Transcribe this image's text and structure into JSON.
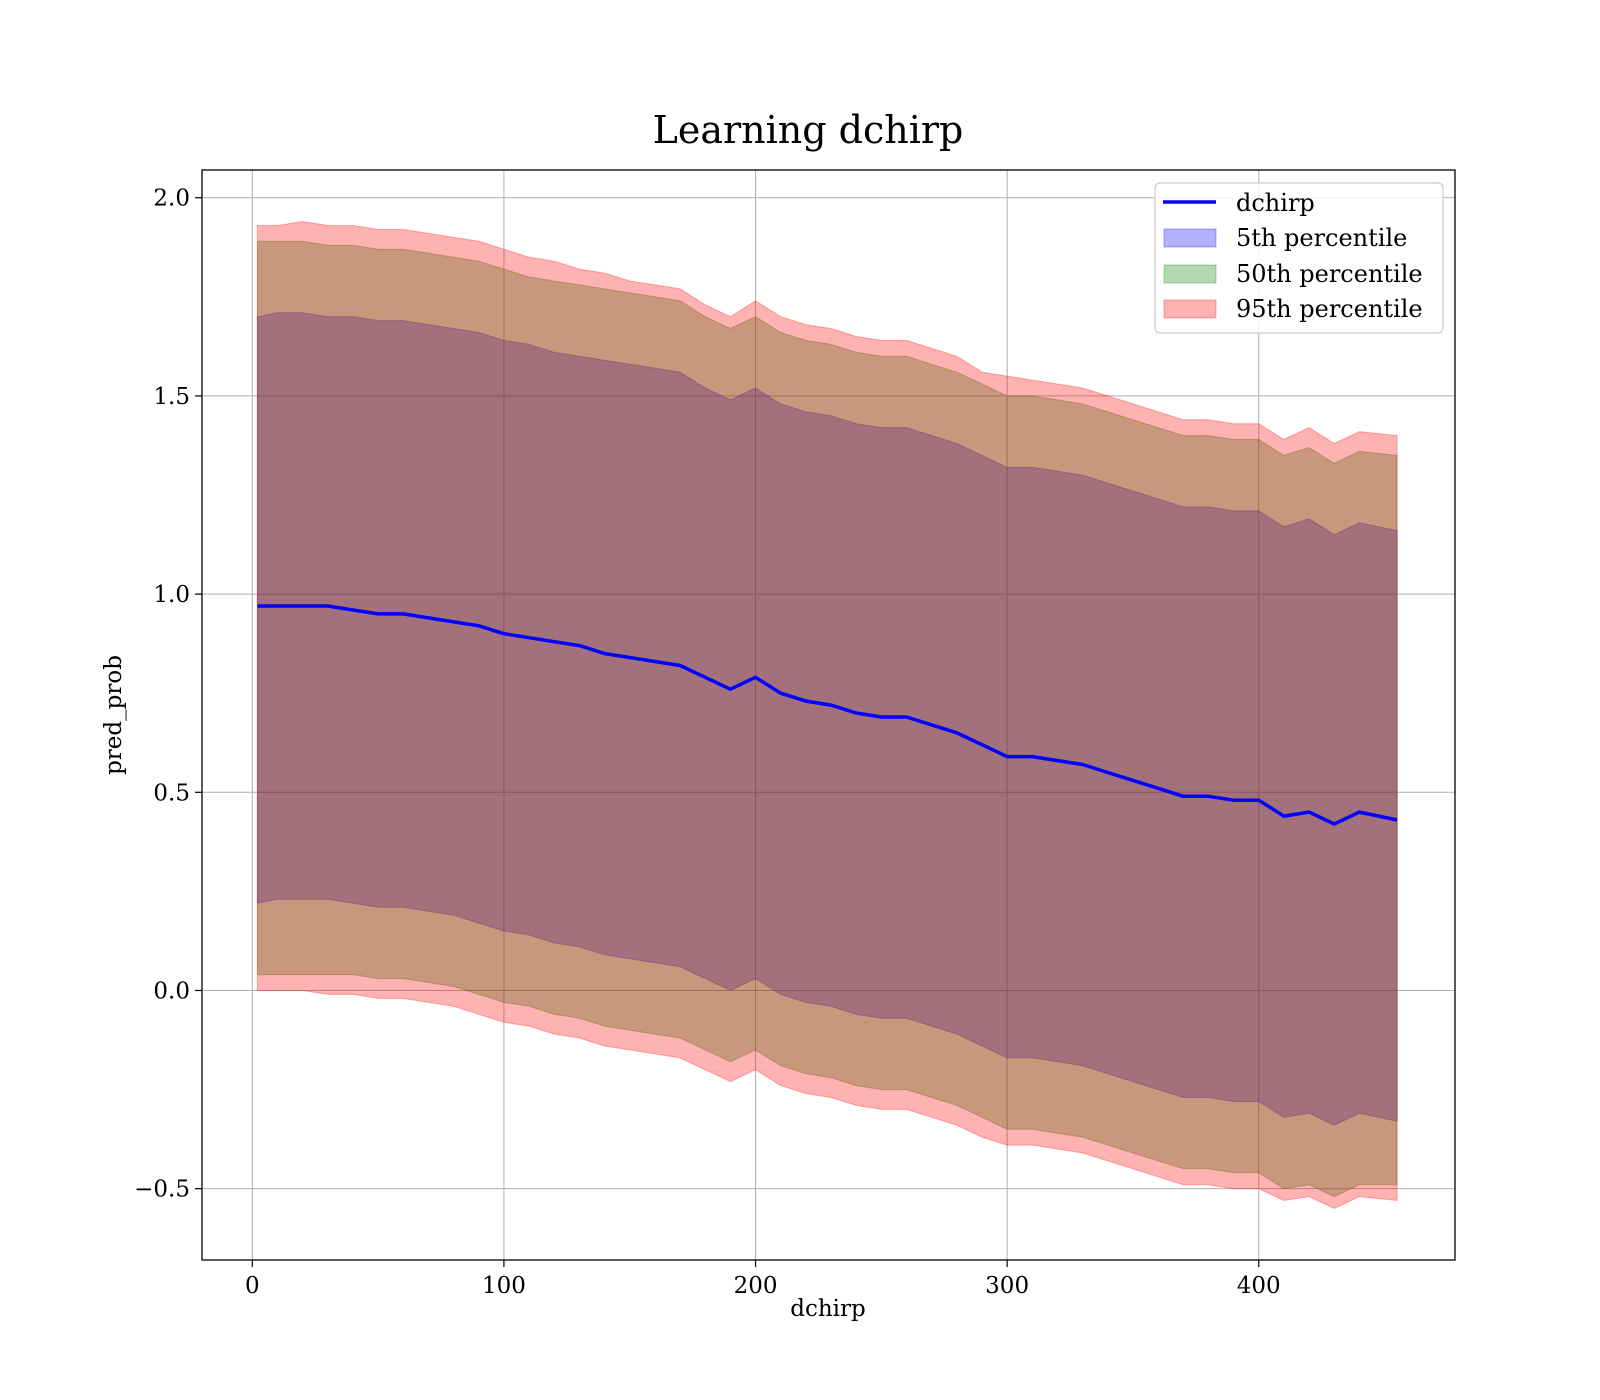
{
  "chart_data": {
    "type": "line",
    "title": "Learning dchirp",
    "xlabel": "dchirp",
    "ylabel": "pred_prob",
    "xlim": [
      -20,
      478
    ],
    "ylim": [
      -0.68,
      2.07
    ],
    "xticks": [
      0,
      100,
      200,
      300,
      400
    ],
    "xtick_labels": [
      "0",
      "100",
      "200",
      "300",
      "400"
    ],
    "yticks": [
      -0.5,
      0.0,
      0.5,
      1.0,
      1.5,
      2.0
    ],
    "ytick_labels": [
      "−0.5",
      "0.0",
      "0.5",
      "1.0",
      "1.5",
      "2.0"
    ],
    "grid": true,
    "legend_position": "upper right",
    "x": [
      2,
      10,
      20,
      30,
      40,
      50,
      60,
      70,
      80,
      90,
      100,
      110,
      120,
      130,
      140,
      150,
      160,
      170,
      180,
      190,
      200,
      210,
      220,
      230,
      240,
      250,
      260,
      270,
      280,
      290,
      300,
      310,
      320,
      330,
      340,
      350,
      360,
      370,
      380,
      390,
      400,
      410,
      420,
      430,
      440,
      455
    ],
    "line": {
      "name": "dchirp",
      "color": "#0000ff",
      "values": [
        0.97,
        0.97,
        0.97,
        0.97,
        0.96,
        0.95,
        0.95,
        0.94,
        0.93,
        0.92,
        0.9,
        0.89,
        0.88,
        0.87,
        0.85,
        0.84,
        0.83,
        0.82,
        0.79,
        0.76,
        0.79,
        0.75,
        0.73,
        0.72,
        0.7,
        0.69,
        0.69,
        0.67,
        0.65,
        0.62,
        0.59,
        0.59,
        0.58,
        0.57,
        0.55,
        0.53,
        0.51,
        0.49,
        0.49,
        0.48,
        0.48,
        0.44,
        0.45,
        0.42,
        0.45,
        0.43
      ]
    },
    "bands": [
      {
        "name": "5th percentile",
        "color": "#0000ff",
        "opacity": 0.3,
        "upper": [
          1.7,
          1.71,
          1.71,
          1.7,
          1.7,
          1.69,
          1.69,
          1.68,
          1.67,
          1.66,
          1.64,
          1.63,
          1.61,
          1.6,
          1.59,
          1.58,
          1.57,
          1.56,
          1.52,
          1.49,
          1.52,
          1.48,
          1.46,
          1.45,
          1.43,
          1.42,
          1.42,
          1.4,
          1.38,
          1.35,
          1.32,
          1.32,
          1.31,
          1.3,
          1.28,
          1.26,
          1.24,
          1.22,
          1.22,
          1.21,
          1.21,
          1.17,
          1.19,
          1.15,
          1.18,
          1.16
        ],
        "lower": [
          0.22,
          0.23,
          0.23,
          0.23,
          0.22,
          0.21,
          0.21,
          0.2,
          0.19,
          0.17,
          0.15,
          0.14,
          0.12,
          0.11,
          0.09,
          0.08,
          0.07,
          0.06,
          0.03,
          0.0,
          0.03,
          -0.01,
          -0.03,
          -0.04,
          -0.06,
          -0.07,
          -0.07,
          -0.09,
          -0.11,
          -0.14,
          -0.17,
          -0.17,
          -0.18,
          -0.19,
          -0.21,
          -0.23,
          -0.25,
          -0.27,
          -0.27,
          -0.28,
          -0.28,
          -0.32,
          -0.31,
          -0.34,
          -0.31,
          -0.33
        ]
      },
      {
        "name": "50th percentile",
        "color": "#008000",
        "opacity": 0.3,
        "upper": [
          1.89,
          1.89,
          1.89,
          1.88,
          1.88,
          1.87,
          1.87,
          1.86,
          1.85,
          1.84,
          1.82,
          1.8,
          1.79,
          1.78,
          1.77,
          1.76,
          1.75,
          1.74,
          1.7,
          1.67,
          1.7,
          1.66,
          1.64,
          1.63,
          1.61,
          1.6,
          1.6,
          1.58,
          1.56,
          1.53,
          1.5,
          1.5,
          1.49,
          1.48,
          1.46,
          1.44,
          1.42,
          1.4,
          1.4,
          1.39,
          1.39,
          1.35,
          1.37,
          1.33,
          1.36,
          1.35
        ],
        "lower": [
          0.04,
          0.04,
          0.04,
          0.04,
          0.04,
          0.03,
          0.03,
          0.02,
          0.01,
          -0.01,
          -0.03,
          -0.04,
          -0.06,
          -0.07,
          -0.09,
          -0.1,
          -0.11,
          -0.12,
          -0.15,
          -0.18,
          -0.15,
          -0.19,
          -0.21,
          -0.22,
          -0.24,
          -0.25,
          -0.25,
          -0.27,
          -0.29,
          -0.32,
          -0.35,
          -0.35,
          -0.36,
          -0.37,
          -0.39,
          -0.41,
          -0.43,
          -0.45,
          -0.45,
          -0.46,
          -0.46,
          -0.5,
          -0.49,
          -0.52,
          -0.49,
          -0.49
        ]
      },
      {
        "name": "95th percentile",
        "color": "#ff0000",
        "opacity": 0.3,
        "upper": [
          1.93,
          1.93,
          1.94,
          1.93,
          1.93,
          1.92,
          1.92,
          1.91,
          1.9,
          1.89,
          1.87,
          1.85,
          1.84,
          1.82,
          1.81,
          1.79,
          1.78,
          1.77,
          1.73,
          1.7,
          1.74,
          1.7,
          1.68,
          1.67,
          1.65,
          1.64,
          1.64,
          1.62,
          1.6,
          1.56,
          1.55,
          1.54,
          1.53,
          1.52,
          1.5,
          1.48,
          1.46,
          1.44,
          1.44,
          1.43,
          1.43,
          1.39,
          1.42,
          1.38,
          1.41,
          1.4
        ],
        "lower": [
          0.0,
          0.0,
          0.0,
          -0.01,
          -0.01,
          -0.02,
          -0.02,
          -0.03,
          -0.04,
          -0.06,
          -0.08,
          -0.09,
          -0.11,
          -0.12,
          -0.14,
          -0.15,
          -0.16,
          -0.17,
          -0.2,
          -0.23,
          -0.2,
          -0.24,
          -0.26,
          -0.27,
          -0.29,
          -0.3,
          -0.3,
          -0.32,
          -0.34,
          -0.37,
          -0.39,
          -0.39,
          -0.4,
          -0.41,
          -0.43,
          -0.45,
          -0.47,
          -0.49,
          -0.49,
          -0.5,
          -0.5,
          -0.53,
          -0.52,
          -0.55,
          -0.52,
          -0.53
        ]
      }
    ]
  }
}
